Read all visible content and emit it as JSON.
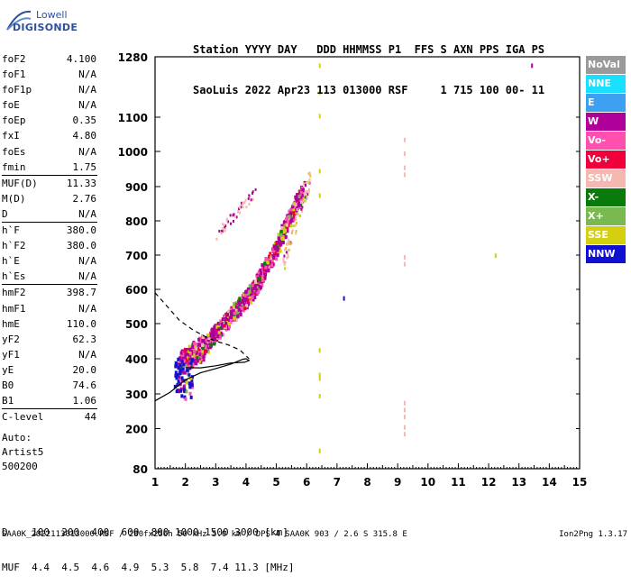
{
  "logo": {
    "line1": "Lowell",
    "line2": "DIGISONDE"
  },
  "header": {
    "row1": "Station YYYY DAY   DDD HHMMSS P1  FFS S AXN PPS IGA PS",
    "row2": "SaoLuis 2022 Apr23 113 013000 RSF     1 715 100 00- 11"
  },
  "params": [
    {
      "k": "foF2",
      "v": "4.100"
    },
    {
      "k": "foF1",
      "v": "N/A"
    },
    {
      "k": "foF1p",
      "v": "N/A"
    },
    {
      "k": "foE",
      "v": "N/A"
    },
    {
      "k": "foEp",
      "v": "0.35"
    },
    {
      "k": "fxI",
      "v": "4.80"
    },
    {
      "k": "foEs",
      "v": "N/A"
    },
    {
      "k": "fmin",
      "v": "1.75"
    },
    {
      "k": "MUF(D)",
      "v": "11.33"
    },
    {
      "k": "M(D)",
      "v": "2.76"
    },
    {
      "k": "D",
      "v": "N/A"
    },
    {
      "k": "h`F",
      "v": "380.0"
    },
    {
      "k": "h`F2",
      "v": "380.0"
    },
    {
      "k": "h`E",
      "v": "N/A"
    },
    {
      "k": "h`Es",
      "v": "N/A"
    },
    {
      "k": "hmF2",
      "v": "398.7"
    },
    {
      "k": "hmF1",
      "v": "N/A"
    },
    {
      "k": "hmE",
      "v": "110.0"
    },
    {
      "k": "yF2",
      "v": "62.3"
    },
    {
      "k": "yF1",
      "v": "N/A"
    },
    {
      "k": "yE",
      "v": "20.0"
    },
    {
      "k": "B0",
      "v": "74.6"
    },
    {
      "k": "B1",
      "v": "1.06"
    },
    {
      "k": "C-level",
      "v": "44"
    }
  ],
  "footnote": {
    "l1": "Auto:",
    "l2": "Artist5",
    "l3": "500200"
  },
  "muf_table": {
    "row1": "D    100  200  400  600  800 1000 1500 3000 [km]",
    "row2": "MUF  4.4  4.5  4.6  4.9  5.3  5.8  7.4 11.3 [MHz]"
  },
  "filename": "SAA0K_2022113013000.RSF / 280fx256h 50 kHz 5.0 km / DPS-4 SAA0K 903 / 2.6 S 315.8 E",
  "version": "Ion2Png 1.3.17",
  "legend": [
    {
      "label": "NoVal",
      "color": "#9a9a9a"
    },
    {
      "label": "NNE",
      "color": "#19e0ff"
    },
    {
      "label": "E",
      "color": "#3da0f0"
    },
    {
      "label": "W",
      "color": "#b0009a"
    },
    {
      "label": "Vo-",
      "color": "#ff50b0"
    },
    {
      "label": "Vo+",
      "color": "#f0003a"
    },
    {
      "label": "SSW",
      "color": "#f4b8b0"
    },
    {
      "label": "X-",
      "color": "#0a7a0a"
    },
    {
      "label": "X+",
      "color": "#7ab850"
    },
    {
      "label": "SSE",
      "color": "#d4d010"
    },
    {
      "label": "NNW",
      "color": "#1010d0"
    }
  ],
  "chart_data": {
    "type": "scatter",
    "xlim": [
      1,
      15
    ],
    "ylim": [
      80,
      1280
    ],
    "xticks": [
      1,
      2,
      3,
      4,
      5,
      6,
      7,
      8,
      9,
      10,
      11,
      12,
      13,
      14,
      15
    ],
    "yticks": [
      80,
      200,
      300,
      400,
      500,
      600,
      700,
      800,
      900,
      1000,
      1100,
      1280
    ],
    "ytick_labels": [
      "80",
      "200",
      "300",
      "400",
      "500",
      "600",
      "700",
      "800",
      "900",
      "1000",
      "1100",
      "1280"
    ],
    "o_trace": [
      [
        1.75,
        395
      ],
      [
        2.0,
        400
      ],
      [
        2.3,
        420
      ],
      [
        2.6,
        440
      ],
      [
        2.9,
        470
      ],
      [
        3.2,
        500
      ],
      [
        3.5,
        530
      ],
      [
        3.8,
        560
      ],
      [
        4.1,
        590
      ],
      [
        4.4,
        630
      ],
      [
        4.7,
        680
      ],
      [
        5.0,
        730
      ],
      [
        5.3,
        790
      ],
      [
        5.6,
        850
      ],
      [
        5.9,
        900
      ]
    ],
    "x_trace": [
      [
        3.0,
        760
      ],
      [
        3.4,
        800
      ],
      [
        3.8,
        840
      ],
      [
        4.1,
        870
      ],
      [
        4.3,
        890
      ]
    ],
    "profile": [
      [
        1.0,
        280
      ],
      [
        1.5,
        305
      ],
      [
        2.0,
        340
      ],
      [
        2.5,
        360
      ],
      [
        3.0,
        372
      ],
      [
        3.5,
        385
      ],
      [
        3.9,
        398.7
      ],
      [
        4.0,
        400
      ],
      [
        4.1,
        395
      ],
      [
        3.95,
        390
      ],
      [
        3.5,
        388
      ],
      [
        3.0,
        380
      ],
      [
        2.5,
        374
      ],
      [
        2.0,
        375
      ]
    ],
    "profile_dashed": [
      [
        1.0,
        590
      ],
      [
        1.4,
        550
      ],
      [
        1.8,
        510
      ],
      [
        2.2,
        485
      ],
      [
        2.6,
        465
      ],
      [
        3.0,
        450
      ],
      [
        3.4,
        440
      ],
      [
        3.8,
        425
      ],
      [
        4.1,
        400
      ]
    ],
    "spurs": [
      {
        "x": 6.4,
        "heights": [
          1260,
          1180,
          1110,
          950,
          880,
          430,
          360,
          350,
          300,
          140
        ],
        "color": "#d4d010"
      },
      {
        "x": 9.2,
        "heights": [
          1040,
          1000,
          960,
          940,
          700,
          680,
          280,
          260,
          240,
          210,
          190
        ],
        "color": "#f4b8b0"
      },
      {
        "x": 7.2,
        "heights": [
          580
        ],
        "color": "#1010d0"
      },
      {
        "x": 13.4,
        "heights": [
          1260
        ],
        "color": "#b0009a"
      },
      {
        "x": 12.2,
        "heights": [
          705
        ],
        "color": "#d4d010"
      }
    ]
  }
}
